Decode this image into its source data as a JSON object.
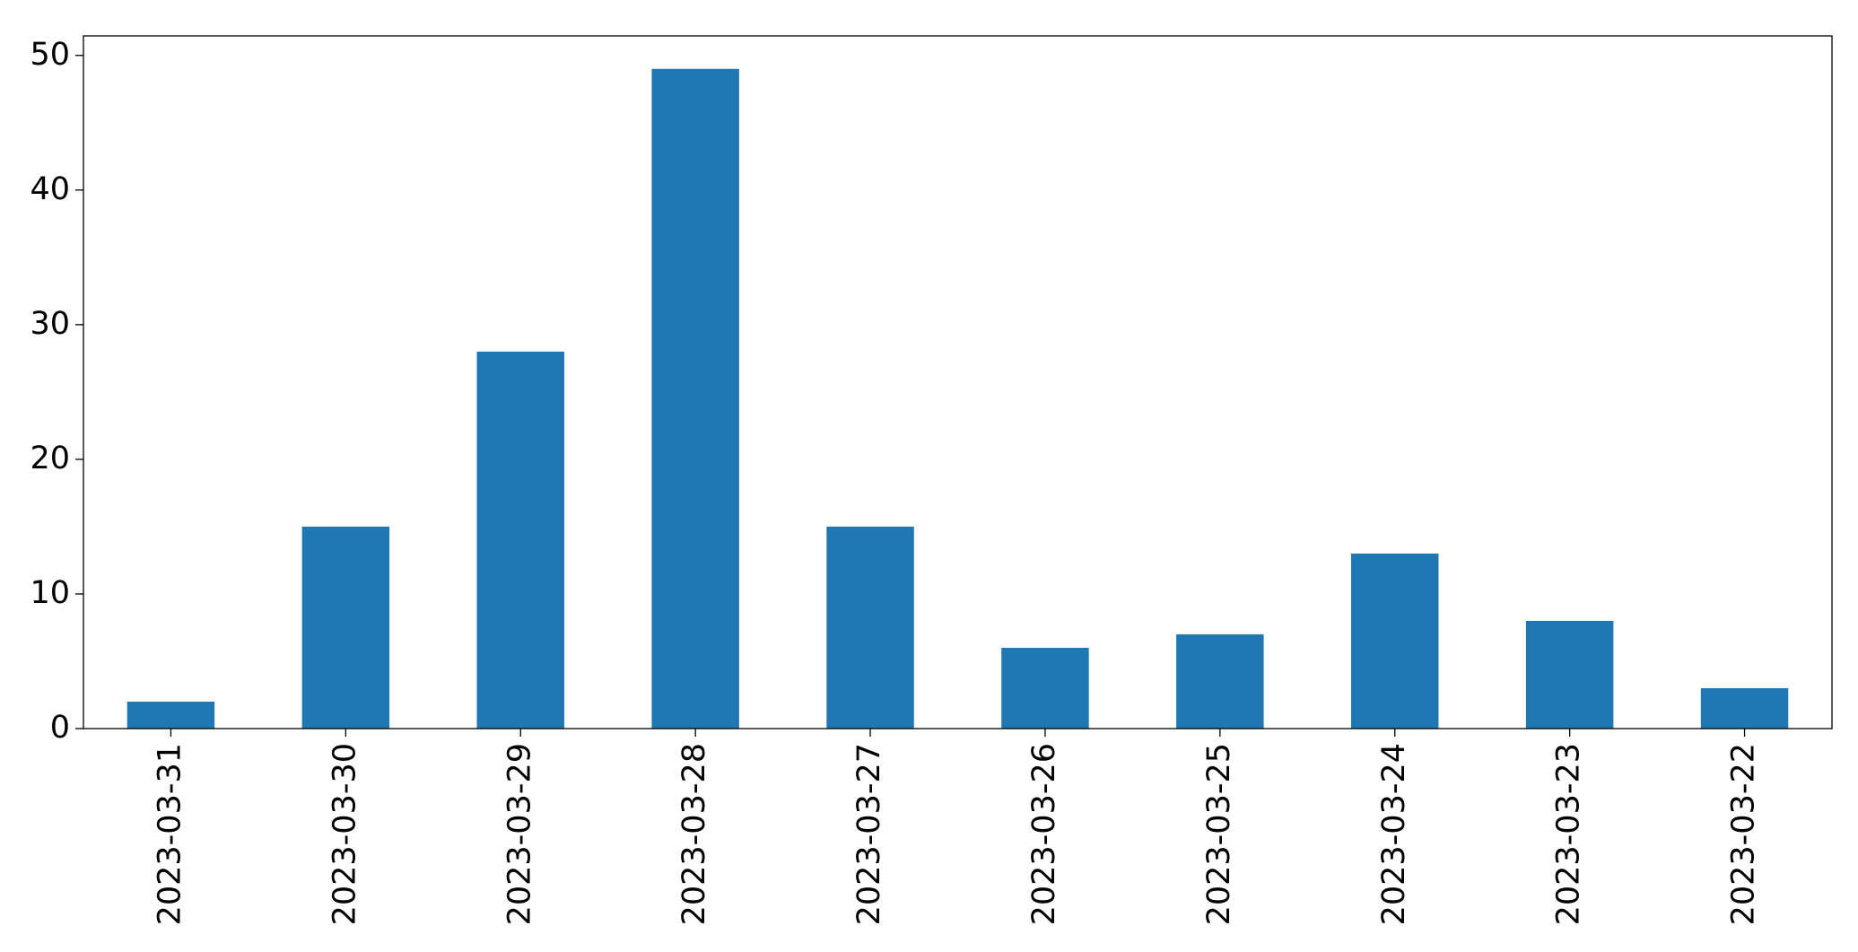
{
  "chart_data": {
    "type": "bar",
    "categories": [
      "2023-03-31",
      "2023-03-30",
      "2023-03-29",
      "2023-03-28",
      "2023-03-27",
      "2023-03-26",
      "2023-03-25",
      "2023-03-24",
      "2023-03-23",
      "2023-03-22"
    ],
    "values": [
      2,
      15,
      28,
      49,
      15,
      6,
      7,
      13,
      8,
      3
    ],
    "color": "#1f77b4",
    "ylim": [
      0,
      51.45
    ],
    "yticks": [
      0,
      10,
      20,
      30,
      40,
      50
    ],
    "grid": false
  }
}
